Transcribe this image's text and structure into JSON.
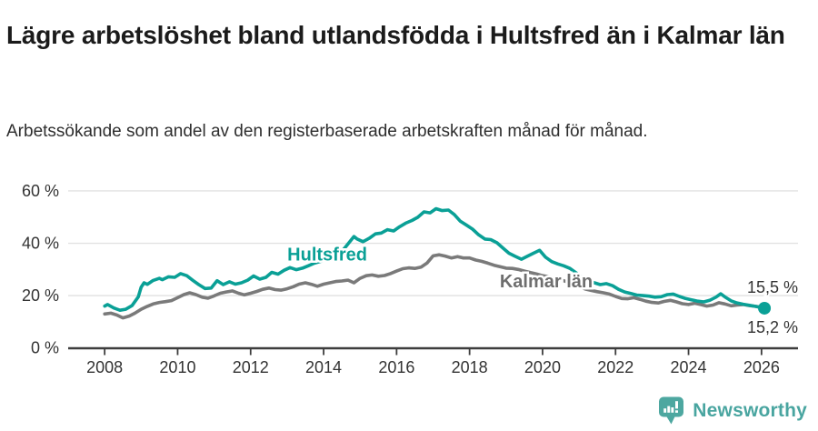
{
  "header": {
    "title": "Lägre arbetslöshet bland utlandsfödda i Hultsfred än i Kalmar län",
    "subtitle": "Arbetssökande som andel av den registerbaserade arbetskraften månad för månad."
  },
  "footer": {
    "brand": "Newsworthy",
    "logo_icon": "newsworthy-speech-bubble-bar-chart"
  },
  "colors": {
    "hultsfred": "#0aa096",
    "kalmar": "#7a7a7a",
    "kalmar_label": "#6e6e6e",
    "axis": "#3d3d3d",
    "grid": "#e2e2e2",
    "tick_text": "#333333",
    "title_text": "#1b1b1b",
    "logo": "#4da7a0",
    "background": "#ffffff"
  },
  "chart_data": {
    "type": "line",
    "title": "Lägre arbetslöshet bland utlandsfödda i Hultsfred än i Kalmar län",
    "subtitle": "Arbetssökande som andel av den registerbaserade arbetskraften månad för månad.",
    "unit": "%",
    "xlim": [
      2007,
      2027
    ],
    "ylim": [
      0,
      65
    ],
    "grid": "horizontal",
    "legend_position": "inline-labels",
    "x_ticks": [
      2008,
      2010,
      2012,
      2014,
      2016,
      2018,
      2020,
      2022,
      2024,
      2026
    ],
    "y_ticks": [
      0,
      20,
      40,
      60
    ],
    "y_tick_labels": [
      "0 %",
      "20 %",
      "40 %",
      "60 %"
    ],
    "series": [
      {
        "name": "Hultsfred",
        "color": "#0aa096",
        "label_color": "#0aa096",
        "label_pos": [
          2014.1,
          33.5
        ],
        "end_label": "15,2 %",
        "end_label_placement": "below",
        "end_value": 15.2,
        "end_marker": true,
        "points": [
          [
            2008.0,
            16.0
          ],
          [
            2008.08,
            16.6
          ],
          [
            2008.25,
            15.3
          ],
          [
            2008.42,
            14.4
          ],
          [
            2008.58,
            14.8
          ],
          [
            2008.75,
            16.2
          ],
          [
            2008.92,
            19.5
          ],
          [
            2009.0,
            23.2
          ],
          [
            2009.08,
            24.9
          ],
          [
            2009.17,
            24.3
          ],
          [
            2009.33,
            25.8
          ],
          [
            2009.5,
            26.6
          ],
          [
            2009.58,
            26.1
          ],
          [
            2009.75,
            27.2
          ],
          [
            2009.92,
            27.0
          ],
          [
            2010.0,
            27.7
          ],
          [
            2010.08,
            28.4
          ],
          [
            2010.25,
            27.6
          ],
          [
            2010.42,
            25.8
          ],
          [
            2010.58,
            24.2
          ],
          [
            2010.75,
            22.7
          ],
          [
            2010.92,
            22.9
          ],
          [
            2011.08,
            25.7
          ],
          [
            2011.25,
            24.2
          ],
          [
            2011.42,
            25.3
          ],
          [
            2011.58,
            24.4
          ],
          [
            2011.75,
            24.9
          ],
          [
            2011.92,
            25.9
          ],
          [
            2012.08,
            27.5
          ],
          [
            2012.25,
            26.3
          ],
          [
            2012.42,
            27.0
          ],
          [
            2012.58,
            28.9
          ],
          [
            2012.75,
            28.2
          ],
          [
            2012.92,
            29.7
          ],
          [
            2013.08,
            30.7
          ],
          [
            2013.25,
            29.9
          ],
          [
            2013.42,
            30.5
          ],
          [
            2013.58,
            31.4
          ],
          [
            2013.75,
            32.4
          ],
          [
            2013.92,
            33.1
          ],
          [
            2014.08,
            34.0
          ],
          [
            2014.25,
            34.9
          ],
          [
            2014.42,
            35.7
          ],
          [
            2014.58,
            38.2
          ],
          [
            2014.75,
            41.2
          ],
          [
            2014.83,
            42.6
          ],
          [
            2014.92,
            41.6
          ],
          [
            2015.08,
            40.6
          ],
          [
            2015.25,
            41.9
          ],
          [
            2015.42,
            43.6
          ],
          [
            2015.58,
            43.9
          ],
          [
            2015.75,
            45.2
          ],
          [
            2015.92,
            44.7
          ],
          [
            2016.08,
            46.3
          ],
          [
            2016.25,
            47.7
          ],
          [
            2016.42,
            48.7
          ],
          [
            2016.58,
            49.9
          ],
          [
            2016.75,
            52.0
          ],
          [
            2016.92,
            51.6
          ],
          [
            2017.08,
            53.2
          ],
          [
            2017.25,
            52.5
          ],
          [
            2017.42,
            52.7
          ],
          [
            2017.58,
            51.0
          ],
          [
            2017.75,
            48.4
          ],
          [
            2017.92,
            46.9
          ],
          [
            2018.08,
            45.4
          ],
          [
            2018.25,
            43.2
          ],
          [
            2018.42,
            41.6
          ],
          [
            2018.58,
            41.4
          ],
          [
            2018.75,
            40.2
          ],
          [
            2018.92,
            38.1
          ],
          [
            2019.08,
            36.2
          ],
          [
            2019.25,
            35.0
          ],
          [
            2019.42,
            33.9
          ],
          [
            2019.58,
            35.0
          ],
          [
            2019.75,
            36.2
          ],
          [
            2019.92,
            37.3
          ],
          [
            2020.08,
            34.7
          ],
          [
            2020.25,
            33.0
          ],
          [
            2020.42,
            32.1
          ],
          [
            2020.58,
            31.4
          ],
          [
            2020.75,
            30.4
          ],
          [
            2020.92,
            28.7
          ],
          [
            2021.08,
            27.1
          ],
          [
            2021.25,
            25.8
          ],
          [
            2021.42,
            24.9
          ],
          [
            2021.58,
            24.2
          ],
          [
            2021.75,
            24.6
          ],
          [
            2021.92,
            23.8
          ],
          [
            2022.08,
            22.4
          ],
          [
            2022.25,
            21.4
          ],
          [
            2022.42,
            20.8
          ],
          [
            2022.58,
            20.2
          ],
          [
            2022.75,
            20.0
          ],
          [
            2022.92,
            19.8
          ],
          [
            2023.08,
            19.4
          ],
          [
            2023.25,
            19.6
          ],
          [
            2023.42,
            20.4
          ],
          [
            2023.58,
            20.6
          ],
          [
            2023.75,
            19.7
          ],
          [
            2023.92,
            18.9
          ],
          [
            2024.08,
            18.4
          ],
          [
            2024.25,
            17.9
          ],
          [
            2024.42,
            17.6
          ],
          [
            2024.58,
            18.2
          ],
          [
            2024.75,
            19.4
          ],
          [
            2024.88,
            20.7
          ],
          [
            2025.0,
            19.5
          ],
          [
            2025.17,
            18.0
          ],
          [
            2025.33,
            17.2
          ],
          [
            2025.5,
            16.7
          ],
          [
            2025.67,
            16.3
          ],
          [
            2025.83,
            15.9
          ],
          [
            2026.0,
            15.4
          ],
          [
            2026.08,
            15.2
          ]
        ]
      },
      {
        "name": "Kalmar län",
        "color": "#7a7a7a",
        "label_color": "#6e6e6e",
        "label_pos": [
          2020.1,
          23.2
        ],
        "end_label": "15,5 %",
        "end_label_placement": "above",
        "end_value": 15.5,
        "end_marker": false,
        "points": [
          [
            2008.0,
            13.0
          ],
          [
            2008.17,
            13.3
          ],
          [
            2008.33,
            12.6
          ],
          [
            2008.5,
            11.5
          ],
          [
            2008.67,
            12.2
          ],
          [
            2008.83,
            13.3
          ],
          [
            2009.0,
            14.8
          ],
          [
            2009.17,
            15.9
          ],
          [
            2009.33,
            16.8
          ],
          [
            2009.5,
            17.4
          ],
          [
            2009.67,
            17.7
          ],
          [
            2009.83,
            18.1
          ],
          [
            2010.0,
            19.2
          ],
          [
            2010.17,
            20.4
          ],
          [
            2010.33,
            21.1
          ],
          [
            2010.5,
            20.4
          ],
          [
            2010.67,
            19.4
          ],
          [
            2010.83,
            19.0
          ],
          [
            2011.0,
            19.9
          ],
          [
            2011.17,
            20.9
          ],
          [
            2011.33,
            21.4
          ],
          [
            2011.5,
            21.8
          ],
          [
            2011.67,
            20.9
          ],
          [
            2011.83,
            20.3
          ],
          [
            2012.0,
            20.9
          ],
          [
            2012.17,
            21.6
          ],
          [
            2012.33,
            22.4
          ],
          [
            2012.5,
            22.9
          ],
          [
            2012.67,
            22.3
          ],
          [
            2012.83,
            22.1
          ],
          [
            2013.0,
            22.6
          ],
          [
            2013.17,
            23.4
          ],
          [
            2013.33,
            24.4
          ],
          [
            2013.5,
            24.9
          ],
          [
            2013.67,
            24.3
          ],
          [
            2013.83,
            23.6
          ],
          [
            2014.0,
            24.4
          ],
          [
            2014.17,
            24.9
          ],
          [
            2014.33,
            25.4
          ],
          [
            2014.5,
            25.6
          ],
          [
            2014.67,
            25.9
          ],
          [
            2014.83,
            24.9
          ],
          [
            2015.0,
            26.6
          ],
          [
            2015.17,
            27.6
          ],
          [
            2015.33,
            27.9
          ],
          [
            2015.5,
            27.4
          ],
          [
            2015.67,
            27.7
          ],
          [
            2015.83,
            28.4
          ],
          [
            2016.0,
            29.4
          ],
          [
            2016.17,
            30.3
          ],
          [
            2016.33,
            30.6
          ],
          [
            2016.5,
            30.4
          ],
          [
            2016.67,
            30.9
          ],
          [
            2016.83,
            32.4
          ],
          [
            2017.0,
            35.2
          ],
          [
            2017.17,
            35.6
          ],
          [
            2017.33,
            35.1
          ],
          [
            2017.5,
            34.4
          ],
          [
            2017.67,
            34.9
          ],
          [
            2017.83,
            34.4
          ],
          [
            2018.0,
            34.4
          ],
          [
            2018.17,
            33.6
          ],
          [
            2018.33,
            33.1
          ],
          [
            2018.5,
            32.4
          ],
          [
            2018.67,
            31.6
          ],
          [
            2018.83,
            31.1
          ],
          [
            2019.0,
            30.5
          ],
          [
            2019.17,
            30.4
          ],
          [
            2019.33,
            30.0
          ],
          [
            2019.5,
            29.4
          ],
          [
            2019.67,
            28.8
          ],
          [
            2019.83,
            28.3
          ],
          [
            2020.0,
            27.6
          ],
          [
            2020.17,
            27.2
          ],
          [
            2020.33,
            26.6
          ],
          [
            2020.5,
            26.0
          ],
          [
            2020.67,
            25.3
          ],
          [
            2020.83,
            24.5
          ],
          [
            2021.0,
            23.5
          ],
          [
            2021.17,
            22.5
          ],
          [
            2021.33,
            22.0
          ],
          [
            2021.5,
            21.5
          ],
          [
            2021.67,
            21.1
          ],
          [
            2021.83,
            20.6
          ],
          [
            2022.0,
            19.7
          ],
          [
            2022.17,
            18.9
          ],
          [
            2022.33,
            18.8
          ],
          [
            2022.5,
            19.2
          ],
          [
            2022.67,
            18.6
          ],
          [
            2022.83,
            17.9
          ],
          [
            2023.0,
            17.4
          ],
          [
            2023.17,
            17.2
          ],
          [
            2023.33,
            17.8
          ],
          [
            2023.5,
            18.2
          ],
          [
            2023.67,
            17.6
          ],
          [
            2023.83,
            16.9
          ],
          [
            2024.0,
            16.6
          ],
          [
            2024.17,
            17.1
          ],
          [
            2024.33,
            16.6
          ],
          [
            2024.5,
            16.0
          ],
          [
            2024.67,
            16.4
          ],
          [
            2024.83,
            17.3
          ],
          [
            2025.0,
            16.8
          ],
          [
            2025.17,
            16.1
          ],
          [
            2025.33,
            16.4
          ],
          [
            2025.5,
            16.6
          ],
          [
            2025.67,
            16.2
          ],
          [
            2025.83,
            15.9
          ],
          [
            2026.0,
            15.6
          ],
          [
            2026.08,
            15.5
          ]
        ]
      }
    ]
  }
}
